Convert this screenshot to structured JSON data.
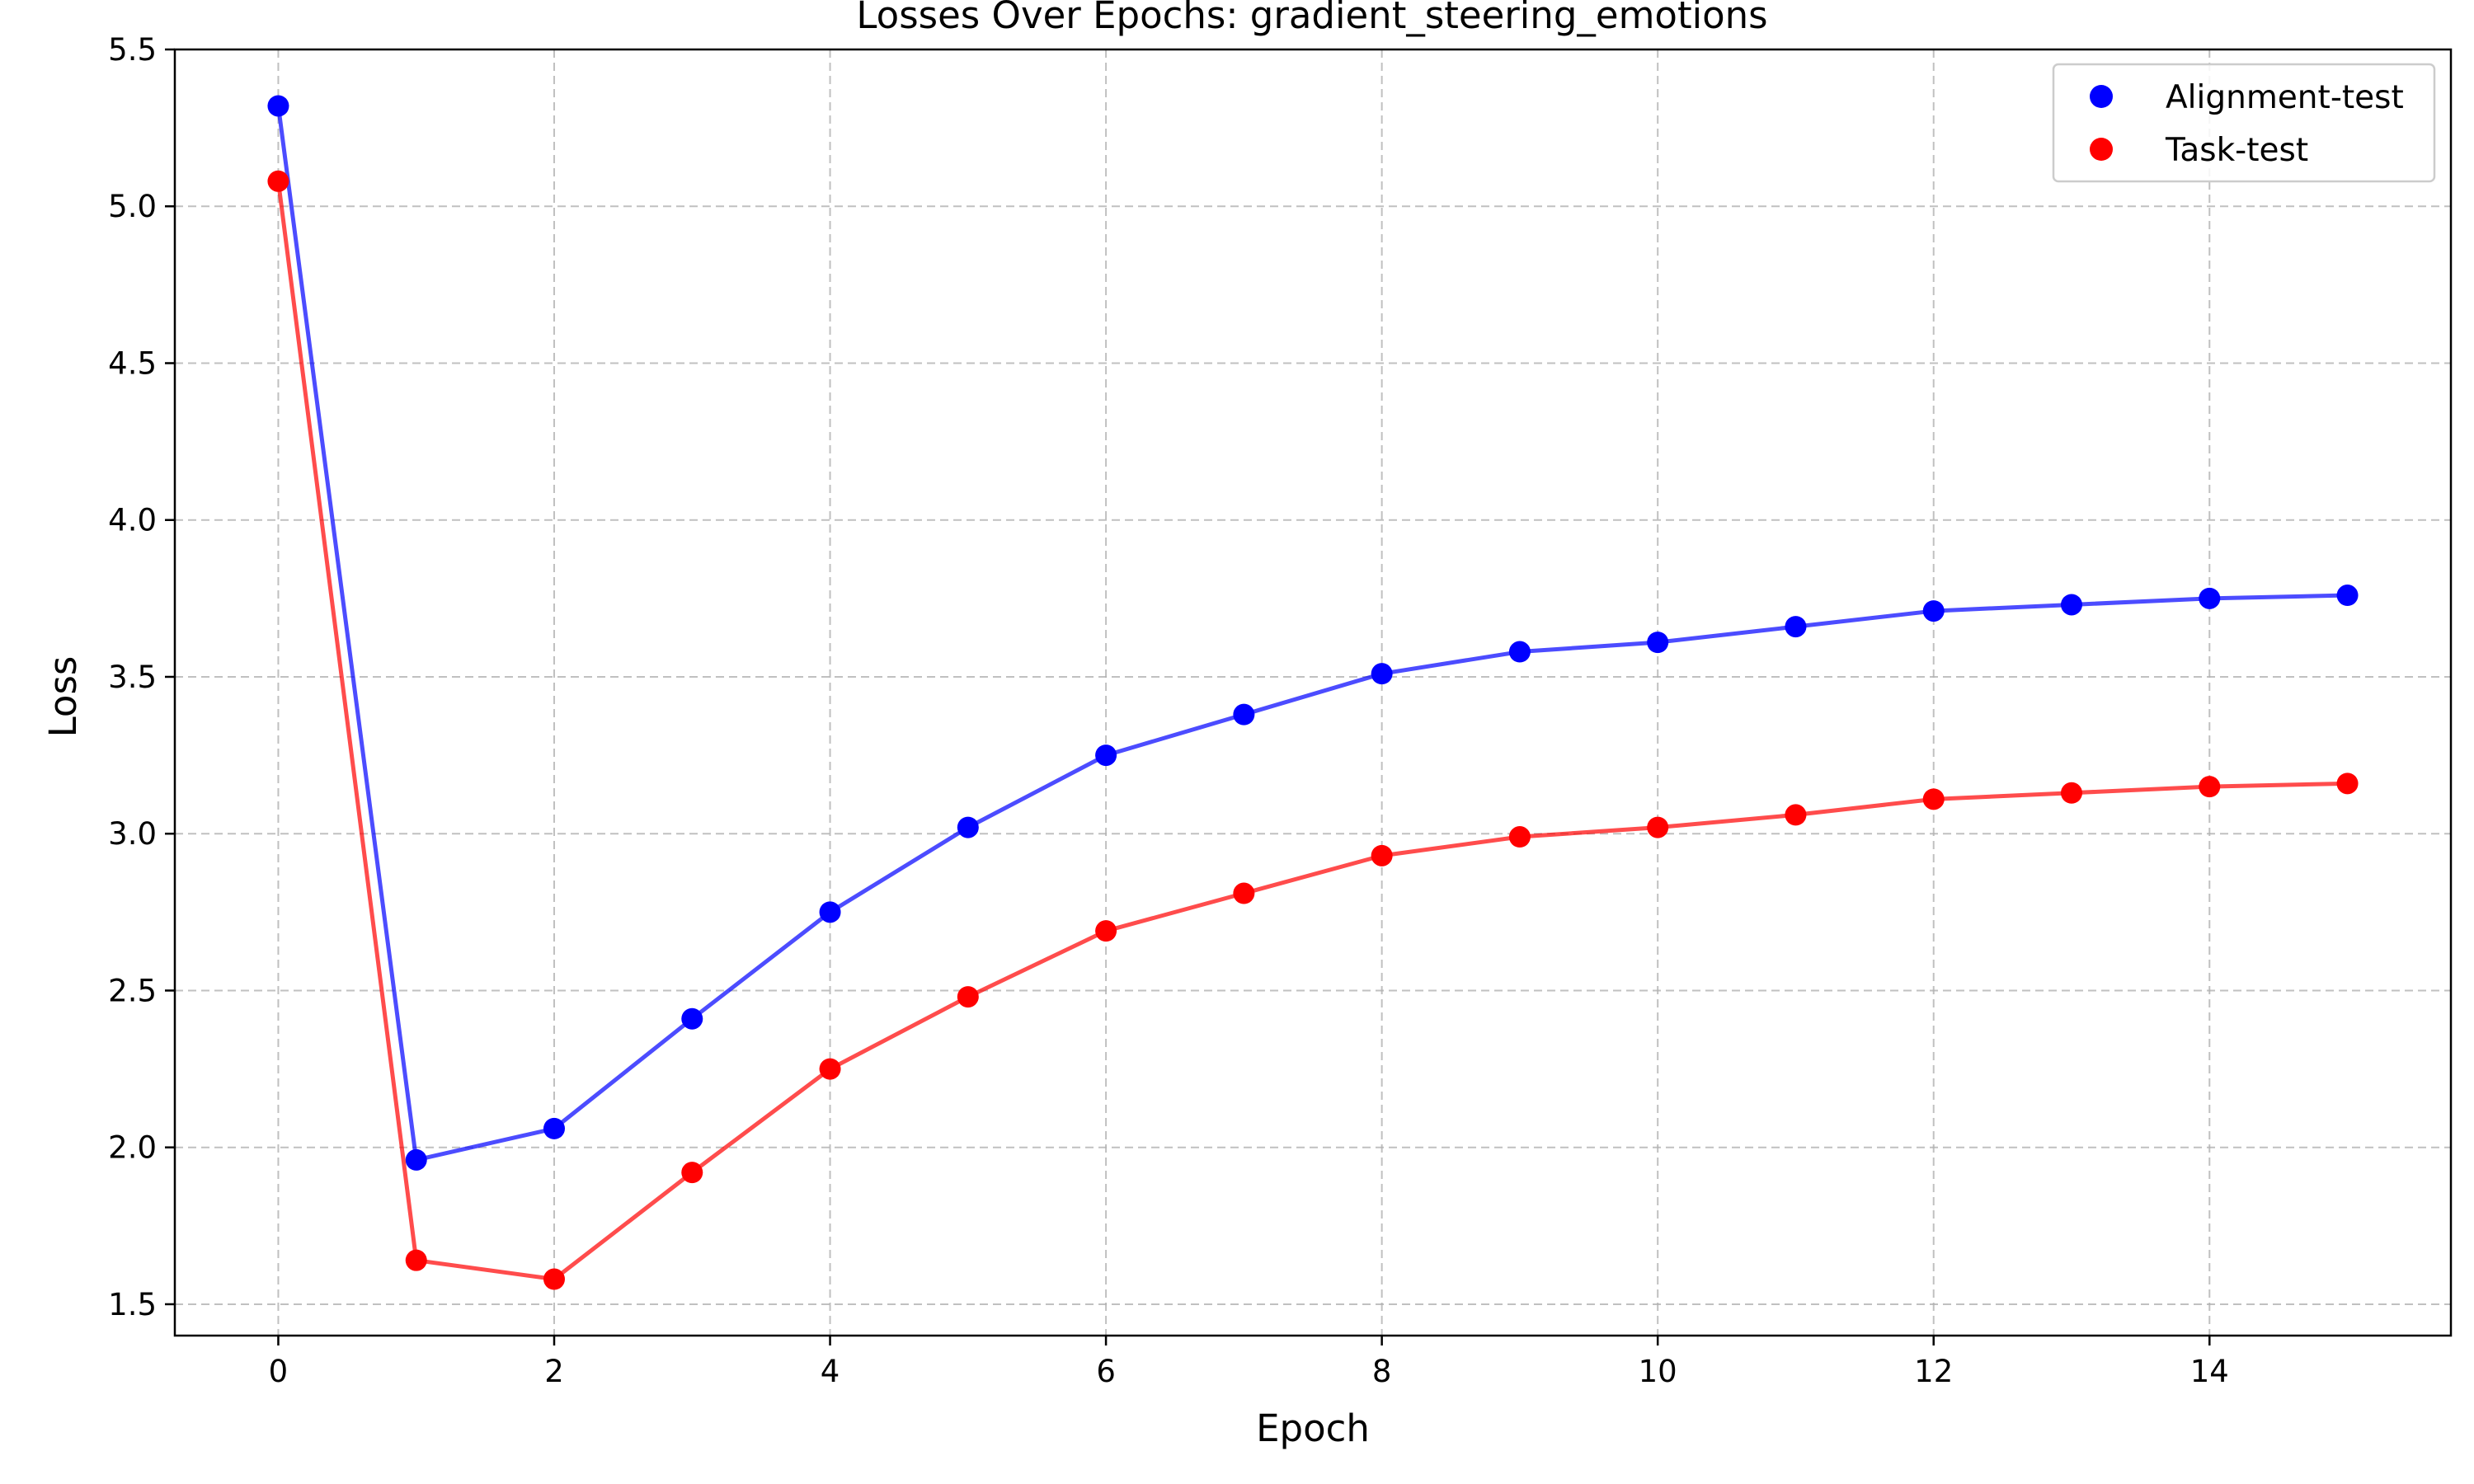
{
  "chart_data": {
    "type": "line",
    "title": "Losses Over Epochs: gradient_steering_emotions",
    "xlabel": "Epoch",
    "ylabel": "Loss",
    "xlim": [
      -0.75,
      15.75
    ],
    "ylim": [
      1.4,
      5.5
    ],
    "x_ticks": [
      0,
      2,
      4,
      6,
      8,
      10,
      12,
      14
    ],
    "x_tick_labels": [
      "0",
      "2",
      "4",
      "6",
      "8",
      "10",
      "12",
      "14"
    ],
    "y_ticks": [
      1.5,
      2.0,
      2.5,
      3.0,
      3.5,
      4.0,
      4.5,
      5.0,
      5.5
    ],
    "y_tick_labels": [
      "1.5",
      "2.0",
      "2.5",
      "3.0",
      "3.5",
      "4.0",
      "4.5",
      "5.0",
      "5.5"
    ],
    "grid": true,
    "grid_style": "dashed",
    "legend_position": "top-right",
    "x": [
      0,
      1,
      2,
      3,
      4,
      5,
      6,
      7,
      8,
      9,
      10,
      11,
      12,
      13,
      14,
      15
    ],
    "series": [
      {
        "name": "Alignment-test",
        "color": "#0000ff",
        "values": [
          5.32,
          1.96,
          2.06,
          2.41,
          2.75,
          3.02,
          3.25,
          3.38,
          3.51,
          3.58,
          3.61,
          3.66,
          3.71,
          3.73,
          3.75,
          3.76
        ]
      },
      {
        "name": "Task-test",
        "color": "#ff0000",
        "values": [
          5.08,
          1.64,
          1.58,
          1.92,
          2.25,
          2.48,
          2.69,
          2.81,
          2.93,
          2.99,
          3.02,
          3.06,
          3.11,
          3.13,
          3.15,
          3.16
        ]
      }
    ]
  }
}
